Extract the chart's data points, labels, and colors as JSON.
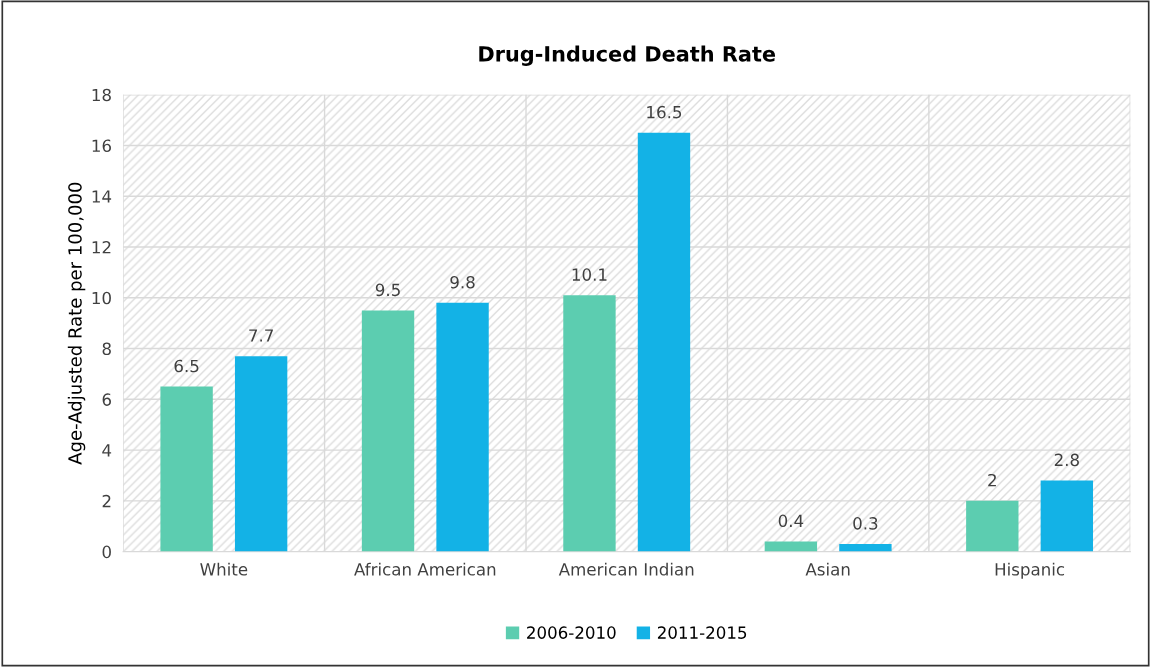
{
  "chart_data": {
    "type": "bar",
    "title": "Drug-Induced Death Rate",
    "ylabel": "Age-Adjusted Rate per 100,000",
    "categories": [
      "White",
      "African American",
      "American Indian",
      "Asian",
      "Hispanic"
    ],
    "series": [
      {
        "name": "2006-2010",
        "color": "#5ccdb0",
        "values": [
          6.5,
          9.5,
          10.1,
          0.4,
          2
        ]
      },
      {
        "name": "2011-2015",
        "color": "#13b2e6",
        "values": [
          7.7,
          9.8,
          16.5,
          0.3,
          2.8
        ]
      }
    ],
    "ylim": [
      0,
      18
    ],
    "yticks": [
      0,
      2,
      4,
      6,
      8,
      10,
      12,
      14,
      16,
      18
    ],
    "grid": true,
    "legend": "bottom",
    "data_labels": true
  }
}
